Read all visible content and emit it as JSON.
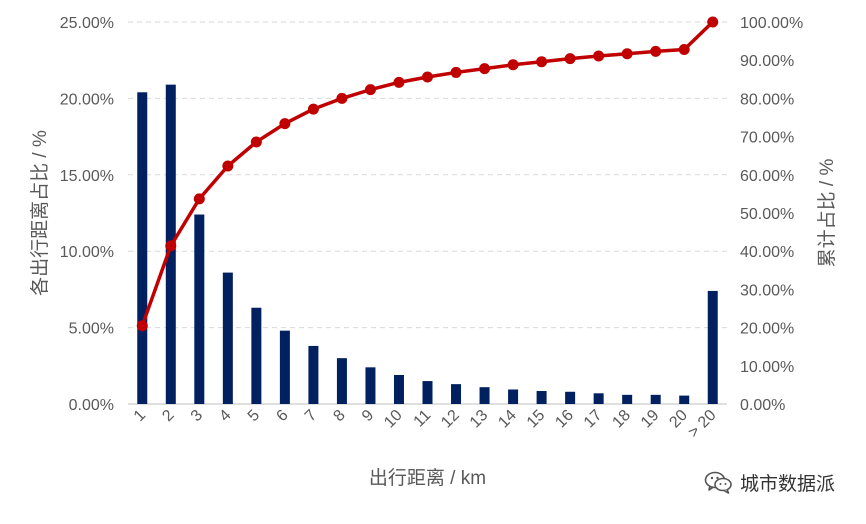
{
  "chart_data": {
    "type": "bar",
    "categories": [
      "1",
      "2",
      "3",
      "4",
      "5",
      "6",
      "7",
      "8",
      "9",
      "10",
      "11",
      "12",
      "13",
      "14",
      "15",
      "16",
      "17",
      "18",
      "19",
      "20",
      "> 20"
    ],
    "series": [
      {
        "values": [
          20.4,
          20.9,
          12.4,
          8.6,
          6.3,
          4.8,
          3.8,
          3.0,
          2.4,
          1.9,
          1.5,
          1.3,
          1.1,
          0.95,
          0.85,
          0.8,
          0.7,
          0.6,
          0.6,
          0.55,
          7.4
        ]
      },
      {
        "type": "line",
        "axis": "right",
        "values": [
          20.5,
          41.4,
          53.7,
          62.3,
          68.6,
          73.4,
          77.2,
          80.0,
          82.3,
          84.2,
          85.6,
          86.8,
          87.8,
          88.8,
          89.6,
          90.4,
          91.1,
          91.7,
          92.3,
          92.8,
          100.0
        ]
      }
    ],
    "xlabel": "出行距离 / km",
    "ylabel": "各出行距离占比 / %",
    "y2label": "累计占比 / %",
    "ylim": [
      0,
      25
    ],
    "y2lim": [
      0,
      100
    ],
    "yticks": [
      "0.00%",
      "5.00%",
      "10.00%",
      "15.00%",
      "20.00%",
      "25.00%"
    ],
    "y2ticks": [
      "0.00%",
      "10.00%",
      "20.00%",
      "30.00%",
      "40.00%",
      "50.00%",
      "60.00%",
      "70.00%",
      "80.00%",
      "90.00%",
      "100.00%"
    ],
    "grid": true,
    "colors": {
      "bar": "#002060",
      "line": "#C00000",
      "grid": "#D9D9D9",
      "axis": "#BFBFBF",
      "text": "#595959"
    }
  },
  "watermark": {
    "text": "城市数据派",
    "icon": "wechat-icon"
  }
}
